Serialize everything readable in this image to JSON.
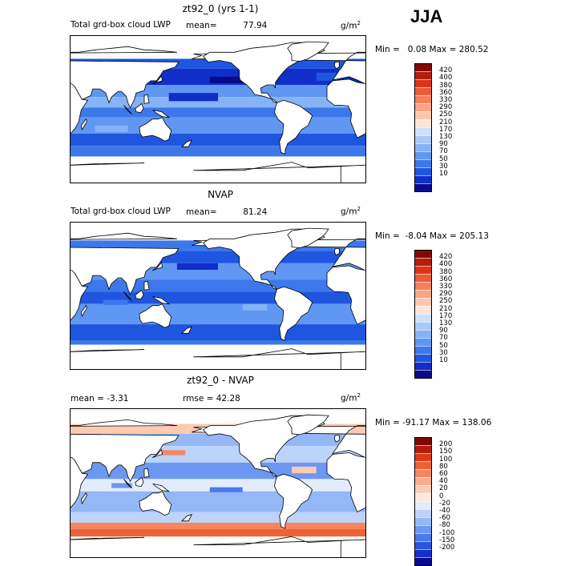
{
  "season": "JJA",
  "panels": [
    {
      "title": "zt92_0 (yrs 1-1)",
      "left_label": "Total grd-box cloud LWP",
      "stat_label": "mean=",
      "stat_value": "77.94",
      "rmse_label": "",
      "rmse_value": "",
      "unit_base": "g/m",
      "unit_exp": "2",
      "min_label": "Min =",
      "min_value": "0.08",
      "max_label": "Max =",
      "max_value": "280.52",
      "colorbar": {
        "colors": [
          "#0a0a8c",
          "#0f2fc8",
          "#1f56e0",
          "#3c78eb",
          "#5f97f2",
          "#86b3f6",
          "#aac9f9",
          "#cfe0fb",
          "#fde5d8",
          "#fcc6ae",
          "#fba385",
          "#f5805c",
          "#ec5a37",
          "#dd3319",
          "#b41e0c",
          "#830909"
        ],
        "labels": [
          "10",
          "30",
          "50",
          "70",
          "90",
          "130",
          "170",
          "210",
          "250",
          "290",
          "330",
          "360",
          "380",
          "400",
          "420"
        ]
      },
      "map": {
        "ocean_levels": 1
      }
    },
    {
      "title": "NVAP",
      "left_label": "Total grd-box cloud LWP",
      "stat_label": "mean=",
      "stat_value": "81.24",
      "rmse_label": "",
      "rmse_value": "",
      "unit_base": "g/m",
      "unit_exp": "2",
      "min_label": "Min =",
      "min_value": "-8.04",
      "max_label": "Max =",
      "max_value": "205.13",
      "colorbar": {
        "colors": [
          "#0a0a8c",
          "#0f2fc8",
          "#1f56e0",
          "#3c78eb",
          "#5f97f2",
          "#86b3f6",
          "#aac9f9",
          "#cfe0fb",
          "#fde5d8",
          "#fcc6ae",
          "#fba385",
          "#f5805c",
          "#ec5a37",
          "#dd3319",
          "#b41e0c",
          "#830909"
        ],
        "labels": [
          "10",
          "30",
          "50",
          "70",
          "90",
          "130",
          "170",
          "210",
          "250",
          "290",
          "330",
          "360",
          "380",
          "400",
          "420"
        ]
      },
      "map": {
        "ocean_levels": 2
      }
    },
    {
      "title": "zt92_0 - NVAP",
      "left_label": "",
      "stat_label": "mean =",
      "stat_value": "-3.31",
      "rmse_label": "rmse =",
      "rmse_value": "42.28",
      "unit_base": "g/m",
      "unit_exp": "2",
      "min_label": "Min =",
      "min_value": "-91.17",
      "max_label": "Max =",
      "max_value": "138.06",
      "colorbar": {
        "colors": [
          "#0a0a8c",
          "#1530c8",
          "#2a55e0",
          "#4a79ea",
          "#6d98f1",
          "#94b7f6",
          "#bcd3fa",
          "#e2ecfc",
          "#fde8dc",
          "#fcccb6",
          "#fbab8e",
          "#f5865f",
          "#ec6138",
          "#dd3a1a",
          "#b31d0b",
          "#7e0806"
        ],
        "labels": [
          "-200",
          "-150",
          "-100",
          "-80",
          "-60",
          "-40",
          "-20",
          "0",
          "20",
          "40",
          "60",
          "80",
          "100",
          "150",
          "200"
        ]
      },
      "map": {
        "ocean_levels": 3
      }
    }
  ]
}
